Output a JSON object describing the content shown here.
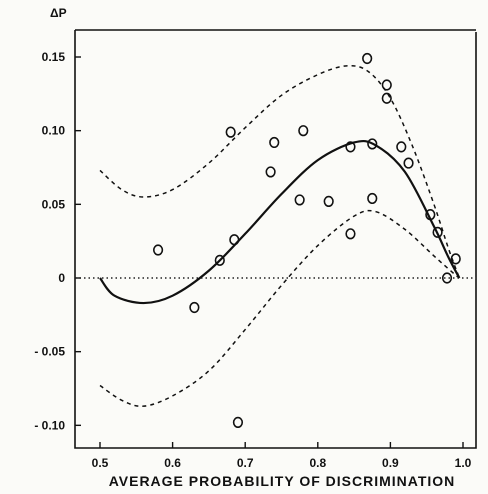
{
  "chart_data": {
    "type": "scatter",
    "title": "",
    "ylabel": "ΔP",
    "xlabel": "AVERAGE PROBABILITY OF DISCRIMINATION",
    "xlim": [
      0.47,
      1.0
    ],
    "ylim": [
      -0.105,
      0.155
    ],
    "x_ticks": [
      0.5,
      0.6,
      0.7,
      0.8,
      0.9,
      1.0
    ],
    "x_tick_labels": [
      "0.5",
      "0.6",
      "0.7",
      "0.8",
      "0.9",
      "1.0"
    ],
    "y_ticks": [
      0.15,
      0.1,
      0.05,
      0,
      -0.05,
      -0.1
    ],
    "y_tick_labels": [
      "0.15",
      "0.10",
      "0.05",
      "0",
      "- 0.05",
      "- 0.10"
    ],
    "grid": false,
    "zero_line": "dotted",
    "series": [
      {
        "type": "scatter",
        "marker": "open-circle",
        "points": [
          {
            "x": 0.58,
            "y": 0.019
          },
          {
            "x": 0.63,
            "y": -0.02
          },
          {
            "x": 0.665,
            "y": 0.012
          },
          {
            "x": 0.68,
            "y": 0.099
          },
          {
            "x": 0.685,
            "y": 0.026
          },
          {
            "x": 0.69,
            "y": -0.098
          },
          {
            "x": 0.735,
            "y": 0.072
          },
          {
            "x": 0.74,
            "y": 0.092
          },
          {
            "x": 0.775,
            "y": 0.053
          },
          {
            "x": 0.78,
            "y": 0.1
          },
          {
            "x": 0.815,
            "y": 0.052
          },
          {
            "x": 0.845,
            "y": 0.089
          },
          {
            "x": 0.845,
            "y": 0.03
          },
          {
            "x": 0.868,
            "y": 0.149
          },
          {
            "x": 0.875,
            "y": 0.091
          },
          {
            "x": 0.875,
            "y": 0.054
          },
          {
            "x": 0.895,
            "y": 0.131
          },
          {
            "x": 0.895,
            "y": 0.122
          },
          {
            "x": 0.915,
            "y": 0.089
          },
          {
            "x": 0.925,
            "y": 0.078
          },
          {
            "x": 0.955,
            "y": 0.043
          },
          {
            "x": 0.965,
            "y": 0.031
          },
          {
            "x": 0.978,
            "y": 0.0
          },
          {
            "x": 0.99,
            "y": 0.013
          }
        ]
      },
      {
        "type": "line",
        "style": "solid",
        "points": [
          {
            "x": 0.5,
            "y": 0.0
          },
          {
            "x": 0.52,
            "y": -0.012
          },
          {
            "x": 0.56,
            "y": -0.017
          },
          {
            "x": 0.6,
            "y": -0.012
          },
          {
            "x": 0.65,
            "y": 0.005
          },
          {
            "x": 0.7,
            "y": 0.03
          },
          {
            "x": 0.75,
            "y": 0.057
          },
          {
            "x": 0.8,
            "y": 0.08
          },
          {
            "x": 0.85,
            "y": 0.092
          },
          {
            "x": 0.88,
            "y": 0.09
          },
          {
            "x": 0.92,
            "y": 0.072
          },
          {
            "x": 0.96,
            "y": 0.035
          },
          {
            "x": 0.98,
            "y": 0.014
          },
          {
            "x": 0.995,
            "y": 0.0
          }
        ]
      },
      {
        "type": "line",
        "style": "dashed",
        "points": [
          {
            "x": 0.5,
            "y": 0.073
          },
          {
            "x": 0.53,
            "y": 0.06
          },
          {
            "x": 0.56,
            "y": 0.055
          },
          {
            "x": 0.6,
            "y": 0.06
          },
          {
            "x": 0.65,
            "y": 0.078
          },
          {
            "x": 0.7,
            "y": 0.102
          },
          {
            "x": 0.75,
            "y": 0.124
          },
          {
            "x": 0.8,
            "y": 0.138
          },
          {
            "x": 0.84,
            "y": 0.144
          },
          {
            "x": 0.87,
            "y": 0.14
          },
          {
            "x": 0.9,
            "y": 0.122
          },
          {
            "x": 0.93,
            "y": 0.09
          },
          {
            "x": 0.96,
            "y": 0.05
          },
          {
            "x": 0.98,
            "y": 0.02
          },
          {
            "x": 0.995,
            "y": 0.0
          }
        ]
      },
      {
        "type": "line",
        "style": "dashed",
        "points": [
          {
            "x": 0.5,
            "y": -0.073
          },
          {
            "x": 0.53,
            "y": -0.083
          },
          {
            "x": 0.56,
            "y": -0.087
          },
          {
            "x": 0.6,
            "y": -0.08
          },
          {
            "x": 0.65,
            "y": -0.063
          },
          {
            "x": 0.7,
            "y": -0.035
          },
          {
            "x": 0.75,
            "y": -0.005
          },
          {
            "x": 0.8,
            "y": 0.022
          },
          {
            "x": 0.85,
            "y": 0.042
          },
          {
            "x": 0.88,
            "y": 0.045
          },
          {
            "x": 0.92,
            "y": 0.033
          },
          {
            "x": 0.96,
            "y": 0.015
          },
          {
            "x": 0.985,
            "y": 0.004
          },
          {
            "x": 0.995,
            "y": 0.0
          }
        ]
      }
    ]
  }
}
